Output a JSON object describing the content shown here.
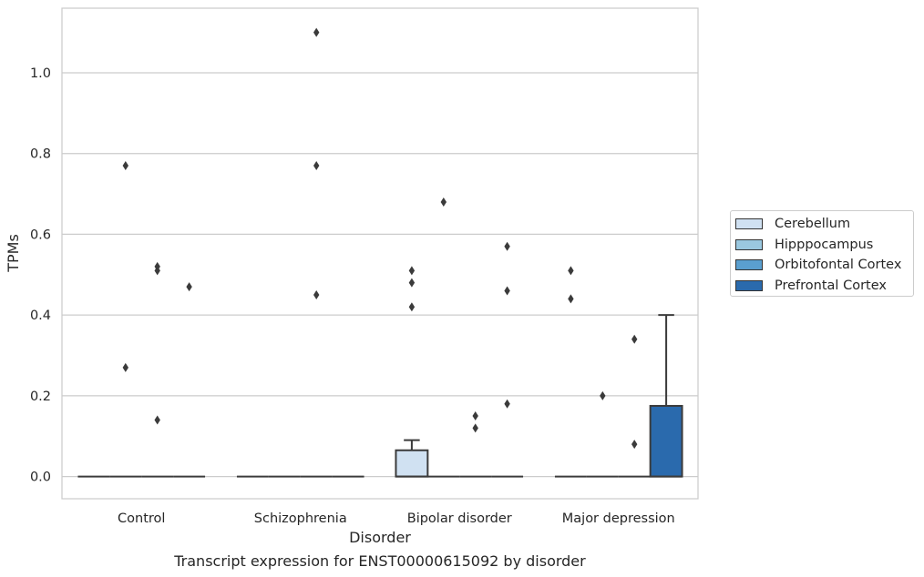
{
  "chart_data": {
    "type": "box",
    "title": "Transcript expression for ENST00000615092 by disorder",
    "xlabel": "Disorder",
    "ylabel": "TPMs",
    "ylim": [
      -0.055,
      1.16
    ],
    "yticks": [
      0.0,
      0.2,
      0.4,
      0.6,
      0.8,
      1.0
    ],
    "ytick_labels": [
      "0.0",
      "0.2",
      "0.4",
      "0.6",
      "0.8",
      "1.0"
    ],
    "grid": true,
    "legend_position": "right",
    "categories": [
      "Control",
      "Schizophrenia",
      "Bipolar disorder",
      "Major depression"
    ],
    "series": [
      {
        "name": "Cerebellum",
        "color": "#d0e1f2",
        "boxes": [
          {
            "q1": 0,
            "median": 0,
            "q3": 0,
            "whisker_low": 0,
            "whisker_high": 0,
            "outliers": []
          },
          {
            "q1": 0,
            "median": 0,
            "q3": 0,
            "whisker_low": 0,
            "whisker_high": 0,
            "outliers": []
          },
          {
            "q1": 0,
            "median": 0,
            "q3": 0.065,
            "whisker_low": 0,
            "whisker_high": 0.09,
            "outliers": [
              0.42,
              0.48,
              0.51
            ]
          },
          {
            "q1": 0,
            "median": 0,
            "q3": 0,
            "whisker_low": 0,
            "whisker_high": 0,
            "outliers": [
              0.44,
              0.51
            ]
          }
        ]
      },
      {
        "name": "Hipppocampus",
        "color": "#9ac8e0",
        "boxes": [
          {
            "q1": 0,
            "median": 0,
            "q3": 0,
            "whisker_low": 0,
            "whisker_high": 0,
            "outliers": [
              0.27,
              0.77
            ]
          },
          {
            "q1": 0,
            "median": 0,
            "q3": 0,
            "whisker_low": 0,
            "whisker_high": 0,
            "outliers": []
          },
          {
            "q1": 0,
            "median": 0,
            "q3": 0,
            "whisker_low": 0,
            "whisker_high": 0,
            "outliers": [
              0.68
            ]
          },
          {
            "q1": 0,
            "median": 0,
            "q3": 0,
            "whisker_low": 0,
            "whisker_high": 0,
            "outliers": [
              0.2
            ]
          }
        ]
      },
      {
        "name": "Orbitofontal Cortex",
        "color": "#5a9fcf",
        "boxes": [
          {
            "q1": 0,
            "median": 0,
            "q3": 0,
            "whisker_low": 0,
            "whisker_high": 0,
            "outliers": [
              0.14,
              0.51,
              0.52
            ]
          },
          {
            "q1": 0,
            "median": 0,
            "q3": 0,
            "whisker_low": 0,
            "whisker_high": 0,
            "outliers": [
              0.45,
              0.77,
              1.1
            ]
          },
          {
            "q1": 0,
            "median": 0,
            "q3": 0,
            "whisker_low": 0,
            "whisker_high": 0,
            "outliers": [
              0.12,
              0.15
            ]
          },
          {
            "q1": 0,
            "median": 0,
            "q3": 0,
            "whisker_low": 0,
            "whisker_high": 0,
            "outliers": [
              0.08,
              0.34
            ]
          }
        ]
      },
      {
        "name": "Prefrontal Cortex",
        "color": "#2a6aad",
        "boxes": [
          {
            "q1": 0,
            "median": 0,
            "q3": 0,
            "whisker_low": 0,
            "whisker_high": 0,
            "outliers": [
              0.47
            ]
          },
          {
            "q1": 0,
            "median": 0,
            "q3": 0,
            "whisker_low": 0,
            "whisker_high": 0,
            "outliers": []
          },
          {
            "q1": 0,
            "median": 0,
            "q3": 0,
            "whisker_low": 0,
            "whisker_high": 0,
            "outliers": [
              0.18,
              0.46,
              0.57
            ]
          },
          {
            "q1": 0,
            "median": 0,
            "q3": 0.175,
            "whisker_low": 0,
            "whisker_high": 0.4,
            "outliers": []
          }
        ]
      }
    ]
  }
}
